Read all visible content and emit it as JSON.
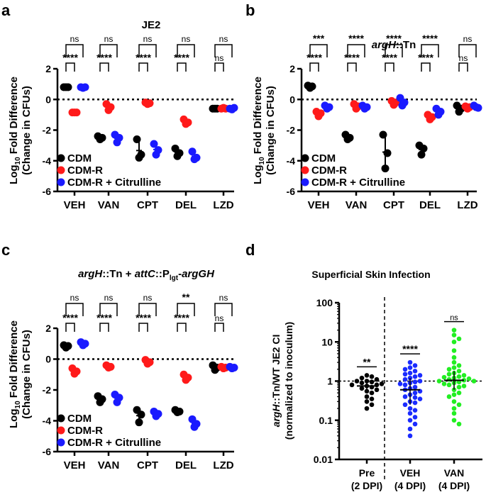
{
  "colors": {
    "cdm": "#000000",
    "cdm_r": "#ff1a1a",
    "cdm_r_cit": "#1a1aff",
    "pre": "#000000",
    "veh": "#1a2bff",
    "van": "#22ee22"
  },
  "panels": [
    {
      "letter": "a",
      "title": "JE2",
      "title_italic": false,
      "ylabel_main": "Log",
      "ylabel_sub": "10",
      "ylabel_rest": " Fold Difference",
      "ylabel2": "(Change in CFUs)",
      "yticks": [
        "2",
        "0",
        "-2",
        "-4",
        "-6"
      ],
      "categories": [
        "VEH",
        "VAN",
        "CPT",
        "DEL",
        "LZD"
      ],
      "sig_upper": [
        "ns",
        "ns",
        "ns",
        "ns",
        "ns"
      ],
      "sig_lower": [
        "****",
        "****",
        "****",
        "****",
        "ns"
      ],
      "legend": [
        "CDM",
        "CDM-R",
        "CDM-R + Citrulline"
      ]
    },
    {
      "letter": "b",
      "title_italic_part": "argH",
      "title_rest": "::Tn",
      "ylabel_main": "Log",
      "ylabel_sub": "10",
      "ylabel_rest": " Fold Difference",
      "ylabel2": "(Change in CFUs)",
      "yticks": [
        "2",
        "0",
        "-2",
        "-4",
        "-6"
      ],
      "categories": [
        "VEH",
        "VAN",
        "CPT",
        "DEL",
        "LZD"
      ],
      "sig_upper": [
        "***",
        "****",
        "****",
        "****",
        "ns"
      ],
      "sig_lower": [
        "****",
        "****",
        "****",
        "****",
        "ns"
      ],
      "legend": [
        "CDM",
        "CDM-R",
        "CDM-R + Citrulline"
      ]
    },
    {
      "letter": "c",
      "title_italic_1": "argH",
      "title_plain_1": "::Tn + ",
      "title_italic_2": "attC",
      "title_plain_2": "::P",
      "title_sub": "lgt",
      "title_plain_3": "-",
      "title_italic_3": "argGH",
      "ylabel_main": "Log",
      "ylabel_sub": "10",
      "ylabel_rest": " Fold Difference",
      "ylabel2": "(Change in CFUs)",
      "yticks": [
        "2",
        "0",
        "-2",
        "-4",
        "-6"
      ],
      "categories": [
        "VEH",
        "VAN",
        "CPT",
        "DEL",
        "LZD"
      ],
      "sig_upper": [
        "ns",
        "ns",
        "ns",
        "**",
        "ns"
      ],
      "sig_lower": [
        "****",
        "****",
        "****",
        "****",
        "ns"
      ],
      "legend": [
        "CDM",
        "CDM-R",
        "CDM-R + Citrulline"
      ]
    },
    {
      "letter": "d",
      "title": "Superficial Skin Infection",
      "ylabel_italic": "argH",
      "ylabel_rest": "::Tn/WT JE2 CI",
      "ylabel2": "(normalized to inoculum)",
      "yticks": [
        "100",
        "10",
        "1",
        "0.1",
        "0.01"
      ],
      "groups": [
        {
          "name": "Pre",
          "sub": "(2 DPI)",
          "sig": "**"
        },
        {
          "name": "VEH",
          "sub": "(4 DPI)",
          "sig": "****"
        },
        {
          "name": "VAN",
          "sub": "(4 DPI)",
          "sig": "ns"
        }
      ]
    }
  ],
  "chart_data": [
    {
      "type": "scatter",
      "panel": "a",
      "title": "JE2",
      "ylabel": "Log10 Fold Difference (Change in CFUs)",
      "ylim": [
        -6,
        2
      ],
      "categories": [
        "VEH",
        "VAN",
        "CPT",
        "DEL",
        "LZD"
      ],
      "series": [
        {
          "name": "CDM",
          "values": [
            [
              0.8,
              0.8,
              0.8
            ],
            [
              -2.4,
              -2.6,
              -2.5
            ],
            [
              -2.6,
              -3.8,
              -3.6
            ],
            [
              -3.2,
              -3.7,
              -3.5
            ],
            [
              -0.6,
              -0.6,
              -0.6
            ]
          ]
        },
        {
          "name": "CDM-R",
          "values": [
            [
              -0.85,
              -0.85,
              -0.85
            ],
            [
              -0.3,
              -0.7,
              -0.5
            ],
            [
              -0.2,
              -0.3,
              -0.25
            ],
            [
              -1.3,
              -1.6,
              -1.5
            ],
            [
              -0.6,
              -0.55,
              -0.6
            ]
          ]
        },
        {
          "name": "CDM-R + Citrulline",
          "values": [
            [
              0.8,
              0.75,
              0.8
            ],
            [
              -2.3,
              -2.8,
              -2.5
            ],
            [
              -2.9,
              -3.6,
              -3.3
            ],
            [
              -3.4,
              -3.9,
              -3.8
            ],
            [
              -0.6,
              -0.65,
              -0.55
            ]
          ]
        }
      ]
    },
    {
      "type": "scatter",
      "panel": "b",
      "title": "argH::Tn",
      "ylabel": "Log10 Fold Difference (Change in CFUs)",
      "ylim": [
        -6,
        2
      ],
      "categories": [
        "VEH",
        "VAN",
        "CPT",
        "DEL",
        "LZD"
      ],
      "series": [
        {
          "name": "CDM",
          "values": [
            [
              0.9,
              0.75,
              0.85
            ],
            [
              -2.3,
              -2.6,
              -2.5
            ],
            [
              -2.3,
              -4.5,
              -3.5
            ],
            [
              -3.0,
              -3.6,
              -3.2
            ],
            [
              -0.4,
              -0.8,
              -0.6
            ]
          ]
        },
        {
          "name": "CDM-R",
          "values": [
            [
              -0.8,
              -1.1,
              -0.9
            ],
            [
              -0.3,
              -0.6,
              -0.45
            ],
            [
              -0.1,
              -0.35,
              -0.2
            ],
            [
              -1.0,
              -1.3,
              -1.15
            ],
            [
              -0.45,
              -0.6,
              -0.5
            ]
          ]
        },
        {
          "name": "CDM-R + Citrulline",
          "values": [
            [
              -0.4,
              -0.6,
              -0.5
            ],
            [
              -0.4,
              -0.6,
              -0.5
            ],
            [
              0.1,
              -0.4,
              -0.2
            ],
            [
              -0.6,
              -1.0,
              -0.8
            ],
            [
              -0.4,
              -0.5,
              -0.55
            ]
          ]
        }
      ]
    },
    {
      "type": "scatter",
      "panel": "c",
      "title": "argH::Tn + attC::Plgt-argGH",
      "ylabel": "Log10 Fold Difference (Change in CFUs)",
      "ylim": [
        -6,
        2
      ],
      "categories": [
        "VEH",
        "VAN",
        "CPT",
        "DEL",
        "LZD"
      ],
      "series": [
        {
          "name": "CDM",
          "values": [
            [
              0.9,
              0.75,
              0.85
            ],
            [
              -2.4,
              -2.8,
              -2.6
            ],
            [
              -3.3,
              -4.1,
              -3.6
            ],
            [
              -3.3,
              -3.45,
              -3.4
            ],
            [
              -0.4,
              -0.7,
              -0.55
            ]
          ]
        },
        {
          "name": "CDM-R",
          "values": [
            [
              -0.6,
              -0.95,
              -0.8
            ],
            [
              -0.4,
              -0.55,
              -0.5
            ],
            [
              -0.05,
              -0.3,
              -0.2
            ],
            [
              -1.0,
              -1.35,
              -1.2
            ],
            [
              -0.5,
              -0.6,
              -0.55
            ]
          ]
        },
        {
          "name": "CDM-R + Citrulline",
          "values": [
            [
              1.1,
              0.9,
              1.0
            ],
            [
              -2.3,
              -2.8,
              -2.5
            ],
            [
              -3.4,
              -3.7,
              -3.55
            ],
            [
              -3.9,
              -4.4,
              -4.2
            ],
            [
              -0.5,
              -0.6,
              -0.55
            ]
          ]
        }
      ]
    },
    {
      "type": "scatter",
      "panel": "d",
      "title": "Superficial Skin Infection",
      "ylabel": "argH::Tn/WT JE2 CI (normalized to inoculum)",
      "yscale": "log",
      "ylim": [
        0.01,
        100
      ],
      "categories": [
        "Pre (2 DPI)",
        "VEH (4 DPI)",
        "VAN (4 DPI)"
      ],
      "reference_line": 1,
      "series": [
        {
          "name": "Pre (2 DPI)",
          "values": [
            1.4,
            1.3,
            1.2,
            1.1,
            1.0,
            1.0,
            0.95,
            0.9,
            0.85,
            0.8,
            0.8,
            0.75,
            0.7,
            0.65,
            0.6,
            0.55,
            0.5,
            0.4,
            0.35,
            0.3,
            0.25,
            0.2
          ]
        },
        {
          "name": "VEH (4 DPI)",
          "values": [
            3.0,
            2.5,
            2.2,
            2.0,
            1.8,
            1.6,
            1.5,
            1.4,
            1.3,
            1.2,
            1.1,
            1.0,
            0.95,
            0.9,
            0.85,
            0.8,
            0.7,
            0.65,
            0.6,
            0.55,
            0.5,
            0.45,
            0.4,
            0.38,
            0.35,
            0.3,
            0.28,
            0.25,
            0.2,
            0.18,
            0.15,
            0.12,
            0.1,
            0.08,
            0.06,
            0.04
          ]
        },
        {
          "name": "VAN (4 DPI)",
          "values": [
            20.0,
            15.0,
            12.0,
            10.0,
            6.0,
            4.0,
            3.0,
            2.5,
            2.2,
            2.0,
            1.8,
            1.6,
            1.5,
            1.4,
            1.3,
            1.25,
            1.2,
            1.15,
            1.1,
            1.05,
            1.0,
            1.0,
            0.95,
            0.9,
            0.85,
            0.8,
            0.75,
            0.7,
            0.6,
            0.5,
            0.45,
            0.4,
            0.3,
            0.25,
            0.2,
            0.15,
            0.1,
            0.08
          ]
        }
      ]
    }
  ]
}
